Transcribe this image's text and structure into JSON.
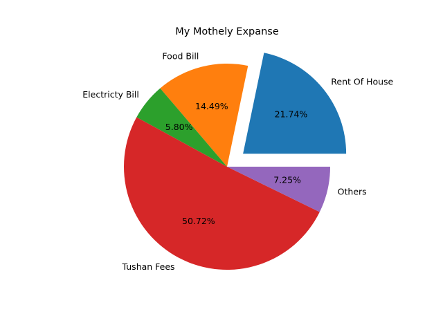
{
  "chart_data": {
    "type": "pie",
    "title": "My Mothely Expanse",
    "categories": [
      "Rent Of House",
      "Food Bill",
      "Electricty Bill",
      "Tushan Fees",
      "Others"
    ],
    "values": [
      21.74,
      14.49,
      5.8,
      50.72,
      7.25
    ],
    "percent_labels": [
      "21.74%",
      "14.49%",
      "5.80%",
      "50.72%",
      "7.25%"
    ],
    "colors": [
      "#1f77b4",
      "#ff7f0e",
      "#2ca02c",
      "#d62728",
      "#9467bd"
    ],
    "exploded": [
      true,
      false,
      false,
      false,
      false
    ],
    "start_angle_deg": 0,
    "direction": "counterclockwise"
  }
}
